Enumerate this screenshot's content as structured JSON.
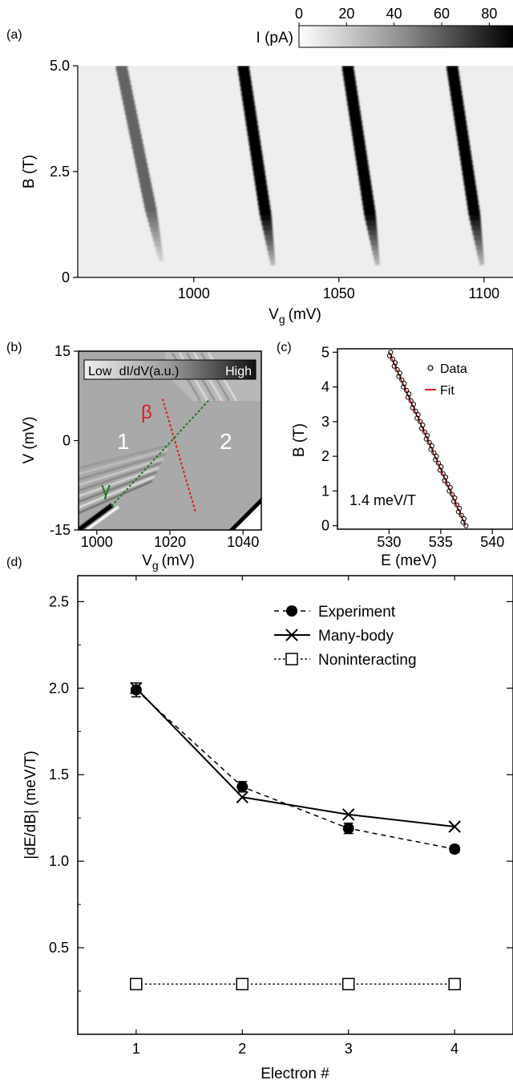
{
  "panel_labels": {
    "a": "(a)",
    "b": "(b)",
    "c": "(c)",
    "d": "(d)"
  },
  "chart_data": [
    {
      "panel": "a",
      "type": "heatmap",
      "xlabel_main": "V",
      "xlabel_sub": "g",
      "xlabel_unit": "(mV)",
      "ylabel": "B (T)",
      "xlim": [
        960,
        1110
      ],
      "ylim": [
        0,
        5
      ],
      "xticks": [
        1000,
        1050,
        1100
      ],
      "xtick_labels": [
        "1000",
        "1050",
        "1100"
      ],
      "yticks": [
        0,
        2.5,
        5
      ],
      "ytick_labels": [
        "0",
        "2.5",
        "5.0"
      ],
      "colorbar": {
        "label": "I (pA)",
        "ticks": [
          0,
          20,
          40,
          60,
          80
        ],
        "tick_labels": [
          "0",
          "20",
          "40",
          "60",
          "80"
        ],
        "range": [
          0,
          90
        ]
      },
      "traces": [
        {
          "vg_at_0T": 990,
          "vg_at_5T": 975,
          "peak_pA": 55,
          "onset_T": 0.4
        },
        {
          "vg_at_0T": 1028,
          "vg_at_5T": 1017,
          "peak_pA": 90,
          "onset_T": 0.3
        },
        {
          "vg_at_0T": 1064,
          "vg_at_5T": 1053,
          "peak_pA": 90,
          "onset_T": 0.3
        },
        {
          "vg_at_0T": 1100,
          "vg_at_5T": 1089,
          "peak_pA": 90,
          "onset_T": 0.3
        }
      ]
    },
    {
      "panel": "b",
      "type": "heatmap",
      "xlabel_main": "V",
      "xlabel_sub": "g",
      "xlabel_unit": "(mV)",
      "ylabel": "V (mV)",
      "xlim": [
        995,
        1045
      ],
      "ylim": [
        -15,
        15
      ],
      "xticks": [
        1000,
        1020,
        1040
      ],
      "xtick_labels": [
        "1000",
        "1020",
        "1040"
      ],
      "yticks": [
        -15,
        0,
        15
      ],
      "ytick_labels": [
        "-15",
        "0",
        "15"
      ],
      "colorbar": {
        "low": "Low",
        "label": "dI/dV(a.u.)",
        "high": "High"
      },
      "region_labels": [
        "1",
        "2"
      ],
      "lines": [
        {
          "label": "β",
          "color": "#e01b1b",
          "from": [
            1018,
            7
          ],
          "to": [
            1027,
            -12
          ]
        },
        {
          "label": "γ",
          "color": "#1d7a1d",
          "from": [
            1004,
            -11
          ],
          "to": [
            1031,
            7
          ]
        }
      ]
    },
    {
      "panel": "c",
      "type": "scatter",
      "xlabel": "E (meV)",
      "ylabel": "B (T)",
      "xlim": [
        525,
        542
      ],
      "ylim": [
        -0.1,
        5.1
      ],
      "xticks": [
        530,
        535,
        540
      ],
      "xtick_labels": [
        "530",
        "535",
        "540"
      ],
      "yticks": [
        0,
        1,
        2,
        3,
        4,
        5
      ],
      "ytick_labels": [
        "0",
        "1",
        "2",
        "3",
        "4",
        "5"
      ],
      "annotation": "1.4 meV/T",
      "legend": [
        {
          "name": "Data",
          "marker": "open-circle"
        },
        {
          "name": "Fit",
          "marker": "line",
          "color": "#e01b1b"
        }
      ],
      "legend_position": "top-right",
      "fit": {
        "E": [
          530,
          537.4
        ],
        "B": [
          5.0,
          0.0
        ],
        "color": "#e01b1b"
      }
    },
    {
      "panel": "d",
      "type": "line",
      "xlabel": "Electron #",
      "ylabel": "|dE/dB| (meV/T)",
      "xlim": [
        0.45,
        4.55
      ],
      "ylim": [
        0,
        2.65
      ],
      "xticks": [
        1,
        2,
        3,
        4
      ],
      "xtick_labels": [
        "1",
        "2",
        "3",
        "4"
      ],
      "yticks": [
        0.5,
        1.0,
        1.5,
        2.0,
        2.5
      ],
      "ytick_labels": [
        "0.5",
        "1.0",
        "1.5",
        "2.0",
        "2.5"
      ],
      "legend_position": "top-right",
      "x": [
        1,
        2,
        3,
        4
      ],
      "series": [
        {
          "name": "Experiment",
          "values": [
            1.99,
            1.43,
            1.19,
            1.07
          ],
          "errors": [
            0.04,
            0.03,
            0.03,
            0.02
          ],
          "marker": "filled-circle",
          "dash": "dashed"
        },
        {
          "name": "Many-body",
          "values": [
            2.0,
            1.37,
            1.27,
            1.2
          ],
          "marker": "cross",
          "dash": "solid"
        },
        {
          "name": "Noninteracting",
          "values": [
            0.29,
            0.29,
            0.29,
            0.29
          ],
          "marker": "open-square",
          "dash": "dotted"
        }
      ]
    }
  ]
}
